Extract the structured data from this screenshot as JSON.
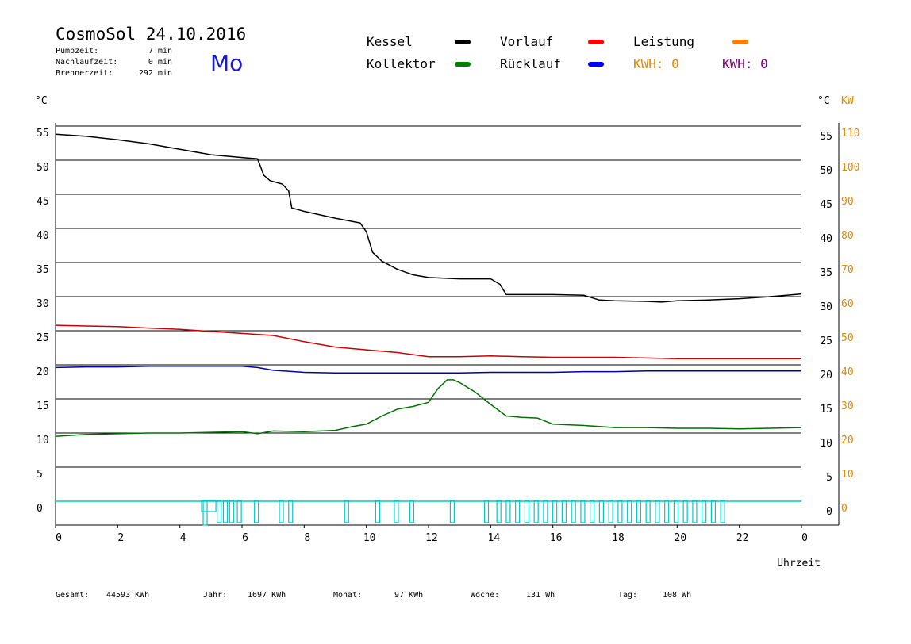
{
  "header": {
    "title": "CosmoSol 24.10.2016",
    "day": "Mo",
    "stats": [
      {
        "label": "Pumpzeit:",
        "value": "7 min"
      },
      {
        "label": "Nachlaufzeit:",
        "value": "0 min"
      },
      {
        "label": "Brennerzeit:",
        "value": "292 min"
      }
    ]
  },
  "legend": {
    "items": [
      {
        "label": "Kessel",
        "color": "#000000"
      },
      {
        "label": "Vorlauf",
        "color": "#ff0000"
      },
      {
        "label": "Leistung",
        "color": "#ff8000"
      },
      {
        "label": "Kollektor",
        "color": "#008000"
      },
      {
        "label": "Rücklauf",
        "color": "#0000ff"
      }
    ],
    "kwh": [
      {
        "text": "KWH: 0",
        "color": "#e08a00"
      },
      {
        "text": "KWH: 0",
        "color": "#800080"
      }
    ]
  },
  "axes": {
    "left_unit": "°C",
    "right_unit": "°C",
    "right_unit2": "KW",
    "xlabel": "Uhrzeit"
  },
  "footer": [
    {
      "label": "Gesamt:",
      "value": "44593 KWh"
    },
    {
      "label": "Jahr:",
      "value": "1697 KWh"
    },
    {
      "label": "Monat:",
      "value": "97 KWh"
    },
    {
      "label": "Woche:",
      "value": "131 Wh"
    },
    {
      "label": "Tag:",
      "value": "108 Wh"
    }
  ],
  "chart_data": {
    "type": "line",
    "xlim": [
      0,
      24
    ],
    "ylim": [
      0,
      55
    ],
    "y2lim": [
      0,
      110
    ],
    "x_ticks": [
      "0",
      "2",
      "4",
      "6",
      "8",
      "10",
      "12",
      "14",
      "16",
      "18",
      "20",
      "22",
      "0"
    ],
    "y_ticks": [
      0,
      5,
      10,
      15,
      20,
      25,
      30,
      35,
      40,
      45,
      50,
      55
    ],
    "y2_ticks": [
      0,
      10,
      20,
      30,
      40,
      50,
      60,
      70,
      80,
      90,
      100,
      110
    ],
    "grid": true,
    "series": [
      {
        "name": "Kessel",
        "color": "#000000",
        "x": [
          0,
          1,
          2,
          3,
          4,
          5,
          6,
          6.5,
          6.7,
          6.9,
          7.3,
          7.5,
          7.6,
          8,
          9,
          9.8,
          10,
          10.2,
          10.5,
          11,
          11.5,
          12,
          13,
          14,
          14.3,
          14.5,
          15,
          16,
          17,
          17.5,
          18,
          19,
          19.5,
          20,
          21,
          22,
          23,
          24
        ],
        "y": [
          53.8,
          53.5,
          53,
          52.4,
          51.6,
          50.8,
          50.4,
          50.2,
          47.8,
          47,
          46.5,
          45.5,
          43,
          42.5,
          41.5,
          40.8,
          39.5,
          36.5,
          35.2,
          34,
          33.2,
          32.8,
          32.6,
          32.6,
          31.8,
          30.3,
          30.3,
          30.3,
          30.2,
          29.5,
          29.4,
          29.3,
          29.2,
          29.4,
          29.5,
          29.7,
          30,
          30.4
        ]
      },
      {
        "name": "Vorlauf",
        "color": "#cc0000",
        "x": [
          0,
          1,
          2,
          3,
          4,
          5,
          6,
          7,
          8,
          9,
          10,
          11,
          12,
          13,
          14,
          15,
          16,
          17,
          18,
          19,
          20,
          21,
          22,
          23,
          24
        ],
        "y": [
          25.8,
          25.7,
          25.6,
          25.4,
          25.2,
          24.9,
          24.6,
          24.3,
          23.4,
          22.6,
          22.2,
          21.8,
          21.2,
          21.2,
          21.3,
          21.2,
          21.1,
          21.1,
          21.1,
          21.0,
          20.9,
          20.9,
          20.9,
          20.9,
          20.9
        ]
      },
      {
        "name": "Rücklauf",
        "color": "#0000aa",
        "x": [
          0,
          1,
          2,
          3,
          4,
          5,
          6,
          6.5,
          7,
          8,
          9,
          10,
          11,
          12,
          13,
          14,
          15,
          16,
          17,
          18,
          19,
          20,
          21,
          22,
          23,
          24
        ],
        "y": [
          19.6,
          19.7,
          19.7,
          19.8,
          19.8,
          19.8,
          19.8,
          19.6,
          19.2,
          18.9,
          18.8,
          18.8,
          18.8,
          18.8,
          18.8,
          18.9,
          18.9,
          18.9,
          19,
          19,
          19.1,
          19.1,
          19.1,
          19.1,
          19.1,
          19.1
        ]
      },
      {
        "name": "Kollektor",
        "color": "#007000",
        "x": [
          0,
          1,
          2,
          3,
          4,
          5,
          6,
          6.5,
          7,
          8,
          9,
          9.5,
          10,
          10.5,
          11,
          11.5,
          12,
          12.3,
          12.6,
          12.8,
          13,
          13.5,
          14,
          14.5,
          15,
          15.5,
          16,
          17,
          18,
          19,
          20,
          21,
          22,
          23,
          24
        ],
        "y": [
          9.5,
          9.8,
          9.9,
          10,
          10,
          10.1,
          10.2,
          9.9,
          10.3,
          10.2,
          10.4,
          10.9,
          11.3,
          12.5,
          13.5,
          13.9,
          14.5,
          16.5,
          17.8,
          17.8,
          17.4,
          16,
          14.2,
          12.5,
          12.3,
          12.2,
          11.3,
          11.1,
          10.8,
          10.8,
          10.7,
          10.7,
          10.6,
          10.7,
          10.8
        ]
      },
      {
        "name": "Leistung",
        "color": "#00c8c8",
        "x": [
          0,
          4.7,
          4.75,
          5.2,
          5.4,
          5.6,
          5.85,
          6.4,
          7.2,
          7.5,
          9.3,
          10.3,
          10.9,
          11.4,
          12.7,
          13.8,
          14.2,
          14.5,
          14.8,
          15.1,
          15.4,
          15.7,
          16,
          16.3,
          16.6,
          16.9,
          17.2,
          17.5,
          17.8,
          18.1,
          18.4,
          18.7,
          19,
          19.3,
          19.6,
          19.9,
          20.2,
          20.5,
          20.8,
          21.1,
          21.4,
          24
        ],
        "y": [
          0,
          0,
          2,
          1.8,
          1.8,
          1.8,
          1.8,
          1.8,
          1.8,
          1.8,
          1.8,
          1.8,
          1.8,
          1.8,
          1.8,
          1.8,
          1.8,
          1.8,
          1.8,
          1.8,
          1.8,
          1.8,
          1.8,
          1.8,
          1.8,
          1.8,
          1.8,
          1.8,
          1.8,
          1.8,
          1.8,
          1.8,
          1.8,
          1.8,
          1.8,
          1.8,
          1.8,
          1.8,
          1.8,
          1.8,
          1.8,
          0
        ]
      }
    ]
  }
}
